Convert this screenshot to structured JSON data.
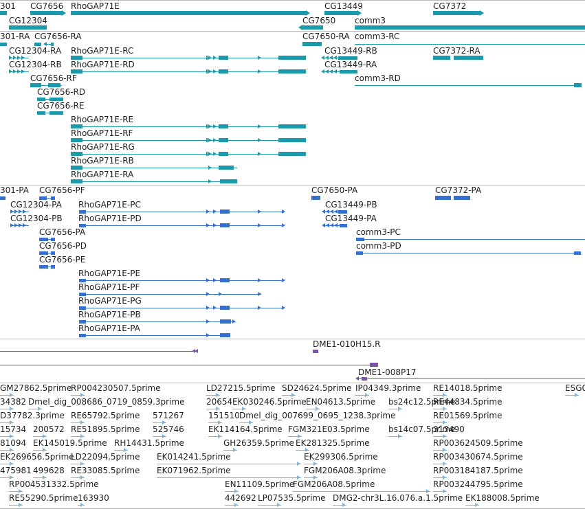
{
  "colors": {
    "teal": "#1a9aaa",
    "blue": "#3570cf",
    "purple": "#7a54a8",
    "lightblue": "#7fb4dc",
    "separator": "#b9b9b9",
    "text": "#1f1f1f"
  },
  "tracks": {
    "genes": {
      "labels": [
        "301",
        "CG7656",
        "RhoGAP71E",
        "CG13449",
        "CG7372",
        "CG12304",
        "CG7650",
        "comm3"
      ]
    },
    "transcripts_teal": {
      "labels": [
        "301-RA",
        "CG7656-RA",
        "CG7650-RA",
        "comm3-RC",
        "CG12304-RA",
        "RhoGAP71E-RC",
        "CG13449-RB",
        "CG7372-RA",
        "CG12304-RB",
        "RhoGAP71E-RD",
        "CG13449-RA",
        "CG7656-RF",
        "comm3-RD",
        "CG7656-RD",
        "CG7656-RE",
        "RhoGAP71E-RE",
        "RhoGAP71E-RF",
        "RhoGAP71E-RG",
        "RhoGAP71E-RB",
        "RhoGAP71E-RA"
      ]
    },
    "transcripts_blue": {
      "labels": [
        "301-PA",
        "CG7656-PF",
        "CG7650-PA",
        "CG7372-PA",
        "CG12304-PA",
        "RhoGAP71E-PC",
        "CG13449-PB",
        "CG12304-PB",
        "RhoGAP71E-PD",
        "CG13449-PA",
        "CG7656-PA",
        "comm3-PC",
        "CG7656-PD",
        "comm3-PD",
        "CG7656-PE",
        "RhoGAP71E-PE",
        "RhoGAP71E-PF",
        "RhoGAP71E-PG",
        "RhoGAP71E-PB",
        "RhoGAP71E-PA"
      ]
    },
    "clones": {
      "labels": [
        "DME1-010H15.R",
        "DME1-008P17"
      ]
    },
    "ests": {
      "labels": [
        "GM27862.5prime",
        "RP004230507.5prime",
        "LD27215.5prime",
        "SD24624.5prime",
        "IP04349.3prime",
        "RE14018.5prime",
        "ESG0",
        "34382",
        "Dmel_dig_008686_0719_0859.3prime",
        "20654",
        "EK030246.5prime",
        "EN04613.5prime",
        "bs24c12.5prime",
        "RE44834.5prime",
        "D37782.3prime",
        "RE65792.5prime",
        "571267",
        "151510",
        "Dmel_dig_007699_0695_1238.3prime",
        "RE01569.5prime",
        "15734",
        "200572",
        "RE51895.5prime",
        "525746",
        "EK114164.5prime",
        "FGM321E03.5prime",
        "bs14c07.5prime",
        "313490",
        "81094",
        "EK145019.5prime",
        "RH14431.5prime",
        "GH26359.5prime",
        "EK281325.5prime",
        "RP003624509.5prime",
        "EK269656.5prime",
        "LD22094.5prime",
        "EK014241.5prime",
        "EK299306.5prime",
        "RP003430674.5prime",
        "475981",
        "499628",
        "RE33085.5prime",
        "EK071962.5prime",
        "FGM206A08.3prime",
        "RP003184187.5prime",
        "RP004531332.5prime",
        "EN11109.5prime",
        "FGM206A08.5prime",
        "RP003244795.5prime",
        "RE55290.5prime",
        "163930",
        "442692",
        "LP07535.5prime",
        "DMG2-chr3L.16.076.a.1.5prime",
        "EK188008.5prime"
      ]
    }
  }
}
